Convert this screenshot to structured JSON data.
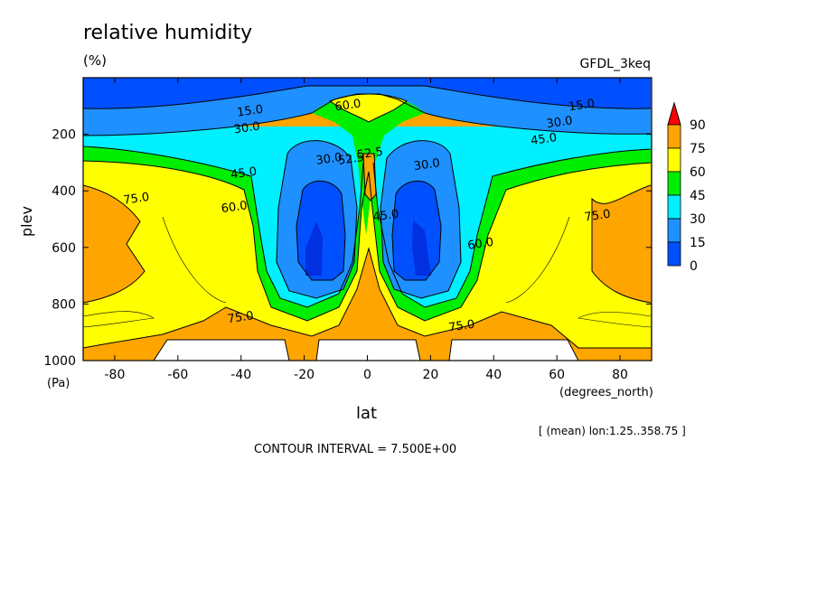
{
  "header": {
    "title": "relative humidity",
    "units": "(%)",
    "model": "GFDL_3keq"
  },
  "footer": {
    "contour_interval": "CONTOUR INTERVAL = 7.500E+00",
    "mean_note": "[ (mean) lon:1.25..358.75 ]"
  },
  "chart_data": {
    "type": "contour",
    "title": "relative humidity",
    "units": "(%)",
    "xlabel": "lat",
    "xunits": "(degrees_north)",
    "ylabel": "plev",
    "yunits": "(Pa)",
    "xlim": [
      -90,
      90
    ],
    "ylim": [
      1000,
      0
    ],
    "xticks": [
      -80,
      -60,
      -40,
      -20,
      0,
      20,
      40,
      60,
      80
    ],
    "yticks": [
      200,
      400,
      600,
      800,
      1000
    ],
    "contour_interval": 7.5,
    "colorbar": {
      "levels": [
        0,
        15,
        30,
        45,
        60,
        75,
        90
      ],
      "colors": [
        "#0050ff",
        "#1e90ff",
        "#00f0ff",
        "#00ee00",
        "#ffff00",
        "#ffa500",
        "#ff0000"
      ]
    },
    "contour_labels": [
      {
        "text": "15.0",
        "lat": -37,
        "plev": 130
      },
      {
        "text": "30.0",
        "lat": -38,
        "plev": 190
      },
      {
        "text": "45.0",
        "lat": -39,
        "plev": 350
      },
      {
        "text": "60.0",
        "lat": -42,
        "plev": 470
      },
      {
        "text": "75.0",
        "lat": -73,
        "plev": 440
      },
      {
        "text": "75.0",
        "lat": -40,
        "plev": 860
      },
      {
        "text": "60.0",
        "lat": -6,
        "plev": 110
      },
      {
        "text": "30.0",
        "lat": -12,
        "plev": 300
      },
      {
        "text": "52.5",
        "lat": -5,
        "plev": 300
      },
      {
        "text": "52.5",
        "lat": 1,
        "plev": 280
      },
      {
        "text": "45.0",
        "lat": 6,
        "plev": 500
      },
      {
        "text": "30.0",
        "lat": 19,
        "plev": 320
      },
      {
        "text": "60.0",
        "lat": 36,
        "plev": 600
      },
      {
        "text": "75.0",
        "lat": 30,
        "plev": 890
      },
      {
        "text": "75.0",
        "lat": 73,
        "plev": 500
      },
      {
        "text": "15.0",
        "lat": 68,
        "plev": 110
      },
      {
        "text": "30.0",
        "lat": 61,
        "plev": 170
      },
      {
        "text": "45.0",
        "lat": 56,
        "plev": 230
      }
    ]
  }
}
